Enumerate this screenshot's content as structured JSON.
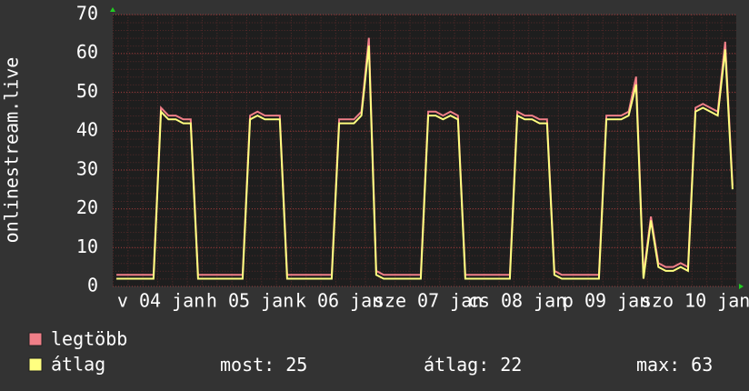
{
  "chart_data": {
    "type": "line",
    "y_label": "onlinestream.live",
    "categories": [
      null,
      null,
      null,
      null,
      null,
      null,
      "v 04 jan",
      null,
      null,
      null,
      null,
      null,
      null,
      null,
      null,
      null,
      null,
      null,
      "h 05 jan",
      null,
      null,
      null,
      null,
      null,
      null,
      null,
      null,
      null,
      null,
      null,
      "k 06 jan",
      null,
      null,
      null,
      null,
      null,
      null,
      null,
      null,
      null,
      null,
      null,
      "sze 07 jan",
      null,
      null,
      null,
      null,
      null,
      null,
      null,
      null,
      null,
      null,
      null,
      "cs 08 jan",
      null,
      null,
      null,
      null,
      null,
      null,
      null,
      null,
      null,
      null,
      null,
      "p 09 jan",
      null,
      null,
      null,
      null,
      null,
      null,
      null,
      null,
      null,
      null,
      null,
      "szo 10 jan",
      null,
      null,
      null,
      null,
      null
    ],
    "series": [
      {
        "name": "legtöbb",
        "color": "#f07f88",
        "values": [
          3,
          3,
          3,
          3,
          3,
          3,
          46,
          44,
          44,
          43,
          43,
          3,
          3,
          3,
          3,
          3,
          3,
          3,
          44,
          45,
          44,
          44,
          44,
          3,
          3,
          3,
          3,
          3,
          3,
          3,
          43,
          43,
          43,
          45,
          64,
          4,
          3,
          3,
          3,
          3,
          3,
          3,
          45,
          45,
          44,
          45,
          44,
          3,
          3,
          3,
          3,
          3,
          3,
          3,
          45,
          44,
          44,
          43,
          43,
          4,
          3,
          3,
          3,
          3,
          3,
          3,
          44,
          44,
          44,
          45,
          54,
          3,
          18,
          6,
          5,
          5,
          6,
          5,
          46,
          47,
          46,
          45,
          63,
          26
        ]
      },
      {
        "name": "átlag",
        "color": "#ffff80",
        "values": [
          2,
          2,
          2,
          2,
          2,
          2,
          45,
          43,
          43,
          42,
          42,
          2,
          2,
          2,
          2,
          2,
          2,
          2,
          43,
          44,
          43,
          43,
          43,
          2,
          2,
          2,
          2,
          2,
          2,
          2,
          42,
          42,
          42,
          44,
          62,
          3,
          2,
          2,
          2,
          2,
          2,
          2,
          44,
          44,
          43,
          44,
          43,
          2,
          2,
          2,
          2,
          2,
          2,
          2,
          44,
          43,
          43,
          42,
          42,
          3,
          2,
          2,
          2,
          2,
          2,
          2,
          43,
          43,
          43,
          44,
          52,
          2,
          17,
          5,
          4,
          4,
          5,
          4,
          45,
          46,
          45,
          44,
          61,
          25
        ]
      }
    ],
    "ylim": [
      0,
      70
    ],
    "yticks": [
      0,
      10,
      20,
      30,
      40,
      50,
      60,
      70
    ],
    "grid": true,
    "stats": [
      {
        "label": "most:",
        "value": 25
      },
      {
        "label": "átlag:",
        "value": 22
      },
      {
        "label": "max:",
        "value": 63
      }
    ]
  }
}
